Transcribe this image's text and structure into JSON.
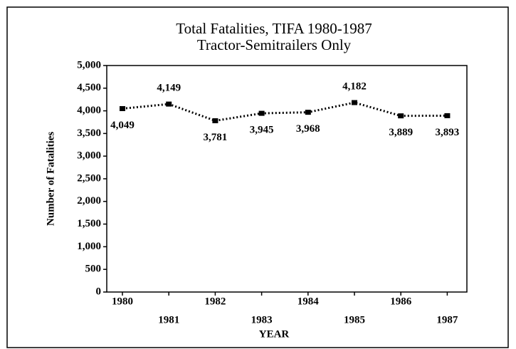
{
  "chart_data": {
    "type": "line",
    "title": "Total Fatalities, TIFA 1980-1987",
    "subtitle": "Tractor-Semitrailers Only",
    "x_label": "YEAR",
    "y_label": "Number of Fatalities",
    "categories": [
      "1980",
      "1981",
      "1982",
      "1983",
      "1984",
      "1985",
      "1986",
      "1987"
    ],
    "values": [
      4049,
      4149,
      3781,
      3945,
      3968,
      4182,
      3889,
      3893
    ],
    "value_labels": [
      "4,049",
      "4,149",
      "3,781",
      "3,945",
      "3,968",
      "4,182",
      "3,889",
      "3,893"
    ],
    "color": "#000000",
    "ylim": [
      0,
      5000
    ],
    "yticks": [
      0,
      500,
      {
        "value": 1000,
        "label": "1,000"
      },
      {
        "value": 1500,
        "label": "1,500"
      },
      {
        "value": 2000,
        "label": "2,000"
      },
      {
        "value": 2500,
        "label": "2,500"
      },
      {
        "value": 3000,
        "label": "3,000"
      },
      {
        "value": 3500,
        "label": "3,500"
      },
      {
        "value": 4000,
        "label": "4,000"
      },
      {
        "value": 4500,
        "label": "4,500"
      },
      {
        "value": 5000,
        "label": "5,000"
      }
    ],
    "grid": false
  }
}
